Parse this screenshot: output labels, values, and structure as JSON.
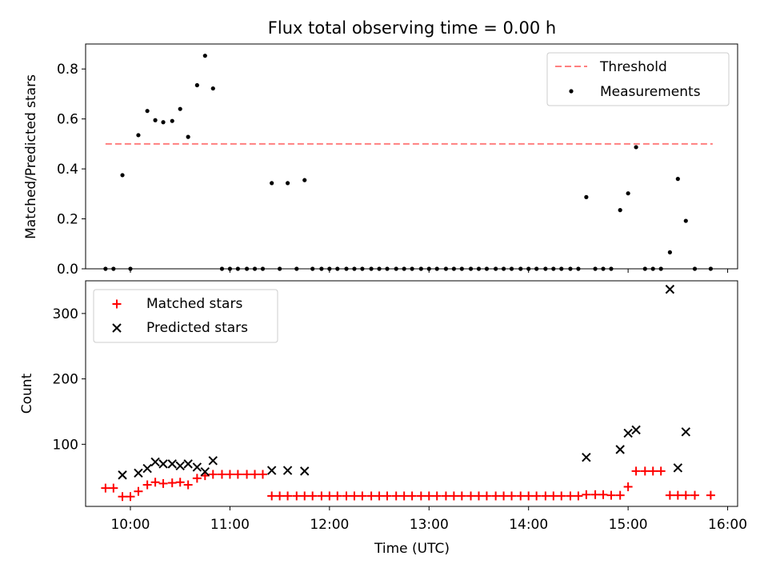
{
  "chart_data": {
    "title": "Flux total observing time = 0.00 h",
    "xlabel": "Time (UTC)",
    "x_tick_labels": [
      "10:00",
      "11:00",
      "12:00",
      "13:00",
      "14:00",
      "15:00",
      "16:00"
    ],
    "x_tick_hours": [
      10,
      11,
      12,
      13,
      14,
      15,
      16
    ],
    "xlim_hours": [
      9.55,
      16.1
    ],
    "top": {
      "type": "scatter",
      "ylabel": "Matched/Predicted stars",
      "ylim": [
        0,
        0.9
      ],
      "y_ticks": [
        0.0,
        0.2,
        0.4,
        0.6,
        0.8
      ],
      "y_tick_labels": [
        "0.0",
        "0.2",
        "0.4",
        "0.6",
        "0.8"
      ],
      "threshold": {
        "name": "Threshold",
        "value": 0.5,
        "x_range": [
          9.75,
          15.85
        ],
        "color": "#ff7f7f"
      },
      "measurements": {
        "name": "Measurements",
        "color": "#000000",
        "points": [
          [
            9.75,
            0
          ],
          [
            9.83,
            0
          ],
          [
            9.92,
            0.375
          ],
          [
            10.0,
            0
          ],
          [
            10.08,
            0.535
          ],
          [
            10.17,
            0.632
          ],
          [
            10.25,
            0.595
          ],
          [
            10.33,
            0.587
          ],
          [
            10.42,
            0.592
          ],
          [
            10.5,
            0.64
          ],
          [
            10.58,
            0.528
          ],
          [
            10.67,
            0.735
          ],
          [
            10.75,
            0.853
          ],
          [
            10.83,
            0.722
          ],
          [
            10.92,
            0
          ],
          [
            11.0,
            0
          ],
          [
            11.08,
            0
          ],
          [
            11.17,
            0
          ],
          [
            11.25,
            0
          ],
          [
            11.33,
            0
          ],
          [
            11.42,
            0.343
          ],
          [
            11.5,
            0
          ],
          [
            11.58,
            0.343
          ],
          [
            11.67,
            0
          ],
          [
            11.75,
            0.355
          ],
          [
            11.83,
            0
          ],
          [
            11.92,
            0
          ],
          [
            12.0,
            0
          ],
          [
            12.08,
            0
          ],
          [
            12.17,
            0
          ],
          [
            12.25,
            0
          ],
          [
            12.33,
            0
          ],
          [
            12.42,
            0
          ],
          [
            12.5,
            0
          ],
          [
            12.58,
            0
          ],
          [
            12.67,
            0
          ],
          [
            12.75,
            0
          ],
          [
            12.83,
            0
          ],
          [
            12.92,
            0
          ],
          [
            13.0,
            0
          ],
          [
            13.08,
            0
          ],
          [
            13.17,
            0
          ],
          [
            13.25,
            0
          ],
          [
            13.33,
            0
          ],
          [
            13.42,
            0
          ],
          [
            13.5,
            0
          ],
          [
            13.58,
            0
          ],
          [
            13.67,
            0
          ],
          [
            13.75,
            0
          ],
          [
            13.83,
            0
          ],
          [
            13.92,
            0
          ],
          [
            14.0,
            0
          ],
          [
            14.08,
            0
          ],
          [
            14.17,
            0
          ],
          [
            14.25,
            0
          ],
          [
            14.33,
            0
          ],
          [
            14.42,
            0
          ],
          [
            14.5,
            0
          ],
          [
            14.58,
            0.287
          ],
          [
            14.67,
            0
          ],
          [
            14.75,
            0
          ],
          [
            14.83,
            0
          ],
          [
            14.92,
            0.235
          ],
          [
            15.0,
            0.302
          ],
          [
            15.08,
            0.487
          ],
          [
            15.17,
            0
          ],
          [
            15.25,
            0
          ],
          [
            15.33,
            0
          ],
          [
            15.42,
            0.066
          ],
          [
            15.5,
            0.36
          ],
          [
            15.58,
            0.192
          ],
          [
            15.67,
            0
          ],
          [
            15.83,
            0
          ]
        ]
      },
      "legend_position": "upper right"
    },
    "bottom": {
      "type": "scatter",
      "ylabel": "Count",
      "ylim": [
        5,
        350
      ],
      "y_ticks": [
        100,
        200,
        300
      ],
      "y_tick_labels": [
        "100",
        "200",
        "300"
      ],
      "series": [
        {
          "name": "Matched stars",
          "marker": "+",
          "color": "#ff0000",
          "points": [
            [
              9.75,
              33
            ],
            [
              9.83,
              33
            ],
            [
              9.92,
              20
            ],
            [
              10.0,
              20
            ],
            [
              10.08,
              28
            ],
            [
              10.17,
              38
            ],
            [
              10.25,
              42
            ],
            [
              10.33,
              40
            ],
            [
              10.42,
              41
            ],
            [
              10.5,
              42
            ],
            [
              10.58,
              38
            ],
            [
              10.67,
              48
            ],
            [
              10.75,
              52
            ],
            [
              10.83,
              54
            ],
            [
              10.92,
              54
            ],
            [
              11.0,
              54
            ],
            [
              11.08,
              54
            ],
            [
              11.17,
              54
            ],
            [
              11.25,
              54
            ],
            [
              11.33,
              54
            ],
            [
              11.42,
              21
            ],
            [
              11.5,
              21
            ],
            [
              11.58,
              21
            ],
            [
              11.67,
              21
            ],
            [
              11.75,
              21
            ],
            [
              11.83,
              21
            ],
            [
              11.92,
              21
            ],
            [
              12.0,
              21
            ],
            [
              12.08,
              21
            ],
            [
              12.17,
              21
            ],
            [
              12.25,
              21
            ],
            [
              12.33,
              21
            ],
            [
              12.42,
              21
            ],
            [
              12.5,
              21
            ],
            [
              12.58,
              21
            ],
            [
              12.67,
              21
            ],
            [
              12.75,
              21
            ],
            [
              12.83,
              21
            ],
            [
              12.92,
              21
            ],
            [
              13.0,
              21
            ],
            [
              13.08,
              21
            ],
            [
              13.17,
              21
            ],
            [
              13.25,
              21
            ],
            [
              13.33,
              21
            ],
            [
              13.42,
              21
            ],
            [
              13.5,
              21
            ],
            [
              13.58,
              21
            ],
            [
              13.67,
              21
            ],
            [
              13.75,
              21
            ],
            [
              13.83,
              21
            ],
            [
              13.92,
              21
            ],
            [
              14.0,
              21
            ],
            [
              14.08,
              21
            ],
            [
              14.17,
              21
            ],
            [
              14.25,
              21
            ],
            [
              14.33,
              21
            ],
            [
              14.42,
              21
            ],
            [
              14.5,
              21
            ],
            [
              14.58,
              23
            ],
            [
              14.67,
              23
            ],
            [
              14.75,
              23
            ],
            [
              14.83,
              22
            ],
            [
              14.92,
              22
            ],
            [
              15.0,
              35
            ],
            [
              15.08,
              59
            ],
            [
              15.17,
              59
            ],
            [
              15.25,
              59
            ],
            [
              15.33,
              59
            ],
            [
              15.42,
              22
            ],
            [
              15.5,
              22
            ],
            [
              15.58,
              22
            ],
            [
              15.67,
              22
            ],
            [
              15.83,
              22
            ]
          ]
        },
        {
          "name": "Predicted stars",
          "marker": "x",
          "color": "#000000",
          "points": [
            [
              9.92,
              53
            ],
            [
              10.08,
              56
            ],
            [
              10.17,
              63
            ],
            [
              10.25,
              73
            ],
            [
              10.33,
              70
            ],
            [
              10.42,
              70
            ],
            [
              10.5,
              67
            ],
            [
              10.58,
              70
            ],
            [
              10.67,
              65
            ],
            [
              10.75,
              58
            ],
            [
              10.83,
              75
            ],
            [
              11.42,
              60
            ],
            [
              11.58,
              60
            ],
            [
              11.75,
              59
            ],
            [
              14.58,
              80
            ],
            [
              14.92,
              92
            ],
            [
              15.0,
              117
            ],
            [
              15.08,
              122
            ],
            [
              15.42,
              337
            ],
            [
              15.5,
              64
            ],
            [
              15.58,
              119
            ]
          ]
        }
      ],
      "legend_position": "upper left"
    }
  }
}
